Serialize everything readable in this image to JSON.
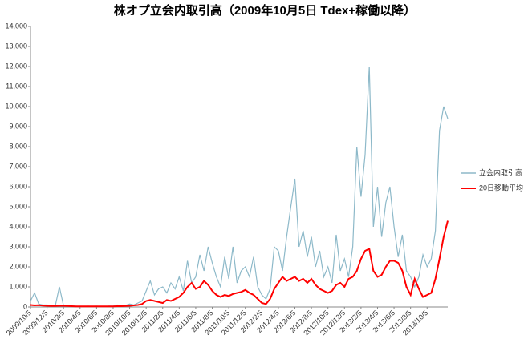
{
  "chart_data": {
    "type": "line",
    "title": "株オプ立会内取引高（2009年10月5日 Tdex+稼働以降）",
    "categories": [
      "2009/10/5",
      null,
      null,
      null,
      "2009/12/5",
      null,
      null,
      null,
      "2010/2/5",
      null,
      null,
      null,
      "2010/4/5",
      null,
      null,
      null,
      "2010/6/5",
      null,
      null,
      null,
      "2010/8/5",
      null,
      null,
      null,
      "2010/10/5",
      null,
      null,
      null,
      "2010/12/5",
      null,
      null,
      null,
      "2011/2/5",
      null,
      null,
      null,
      "2011/4/5",
      null,
      null,
      null,
      "2011/6/5",
      null,
      null,
      null,
      "2011/8/5",
      null,
      null,
      null,
      "2011/10/5",
      null,
      null,
      null,
      "2011/12/5",
      null,
      null,
      null,
      "2012/2/5",
      null,
      null,
      null,
      "2012/4/5",
      null,
      null,
      null,
      "2012/6/5",
      null,
      null,
      null,
      "2012/8/5",
      null,
      null,
      null,
      "2012/10/5",
      null,
      null,
      null,
      "2012/12/5",
      null,
      null,
      null,
      "2013/2/5",
      null,
      null,
      null,
      "2013/4/5",
      null,
      null,
      null,
      "2013/6/5",
      null,
      null,
      null,
      "2013/8/5",
      null,
      null,
      null,
      "2013/10/5",
      null,
      null,
      null,
      null,
      null
    ],
    "series": [
      {
        "name": "立会内取引高",
        "color": "#8db9c9",
        "values": [
          300,
          700,
          150,
          100,
          100,
          80,
          60,
          1000,
          60,
          40,
          50,
          40,
          30,
          30,
          40,
          30,
          40,
          30,
          30,
          50,
          40,
          100,
          60,
          80,
          150,
          100,
          200,
          300,
          800,
          1300,
          600,
          900,
          1000,
          700,
          1200,
          900,
          1500,
          800,
          2300,
          1200,
          1500,
          2600,
          1800,
          3000,
          2200,
          1500,
          1000,
          2500,
          1400,
          3000,
          1200,
          1800,
          2000,
          1500,
          2500,
          1000,
          600,
          400,
          900,
          3000,
          2800,
          1800,
          3500,
          5000,
          6400,
          3000,
          3800,
          2500,
          3500,
          2000,
          2800,
          1500,
          2000,
          1200,
          3600,
          1800,
          2400,
          1500,
          3000,
          8000,
          5500,
          7600,
          12000,
          4000,
          6000,
          3500,
          5200,
          6000,
          4000,
          2500,
          3600,
          1800,
          1500,
          1000,
          1500,
          2600,
          2000,
          2400,
          3800,
          8800,
          10000,
          9400
        ]
      },
      {
        "name": "20日移動平均",
        "color": "#ff0000",
        "values": [
          100,
          80,
          90,
          70,
          60,
          50,
          50,
          60,
          60,
          50,
          40,
          30,
          30,
          30,
          30,
          30,
          30,
          30,
          30,
          30,
          30,
          40,
          40,
          50,
          60,
          80,
          100,
          150,
          300,
          350,
          300,
          250,
          200,
          350,
          300,
          400,
          500,
          700,
          1000,
          1200,
          900,
          1000,
          1300,
          1100,
          800,
          600,
          500,
          600,
          550,
          650,
          700,
          750,
          850,
          700,
          600,
          400,
          200,
          150,
          400,
          900,
          1200,
          1500,
          1300,
          1400,
          1500,
          1300,
          1400,
          1200,
          1400,
          1100,
          900,
          800,
          700,
          800,
          1100,
          1200,
          1000,
          1400,
          1500,
          1800,
          2400,
          2800,
          2900,
          1800,
          1500,
          1600,
          2000,
          2300,
          2300,
          2200,
          1800,
          1000,
          600,
          1400,
          900,
          500,
          600,
          700,
          1400,
          2400,
          3500,
          4300
        ]
      }
    ],
    "ylim": [
      0,
      14000
    ],
    "yticks": [
      0,
      {
        "value": 1000,
        "label": "1,000"
      },
      {
        "value": 2000,
        "label": "2,000"
      },
      {
        "value": 3000,
        "label": "3,000"
      },
      {
        "value": 4000,
        "label": "4,000"
      },
      {
        "value": 5000,
        "label": "5,000"
      },
      {
        "value": 6000,
        "label": "6,000"
      },
      {
        "value": 7000,
        "label": "7,000"
      },
      {
        "value": 8000,
        "label": "8,000"
      },
      {
        "value": 9000,
        "label": "9,000"
      },
      {
        "value": 10000,
        "label": "10,000"
      },
      {
        "value": 11000,
        "label": "11,000"
      },
      {
        "value": 12000,
        "label": "12,000"
      },
      {
        "value": 13000,
        "label": "13,000"
      },
      {
        "value": 14000,
        "label": "14,000"
      }
    ],
    "legend": "right"
  }
}
